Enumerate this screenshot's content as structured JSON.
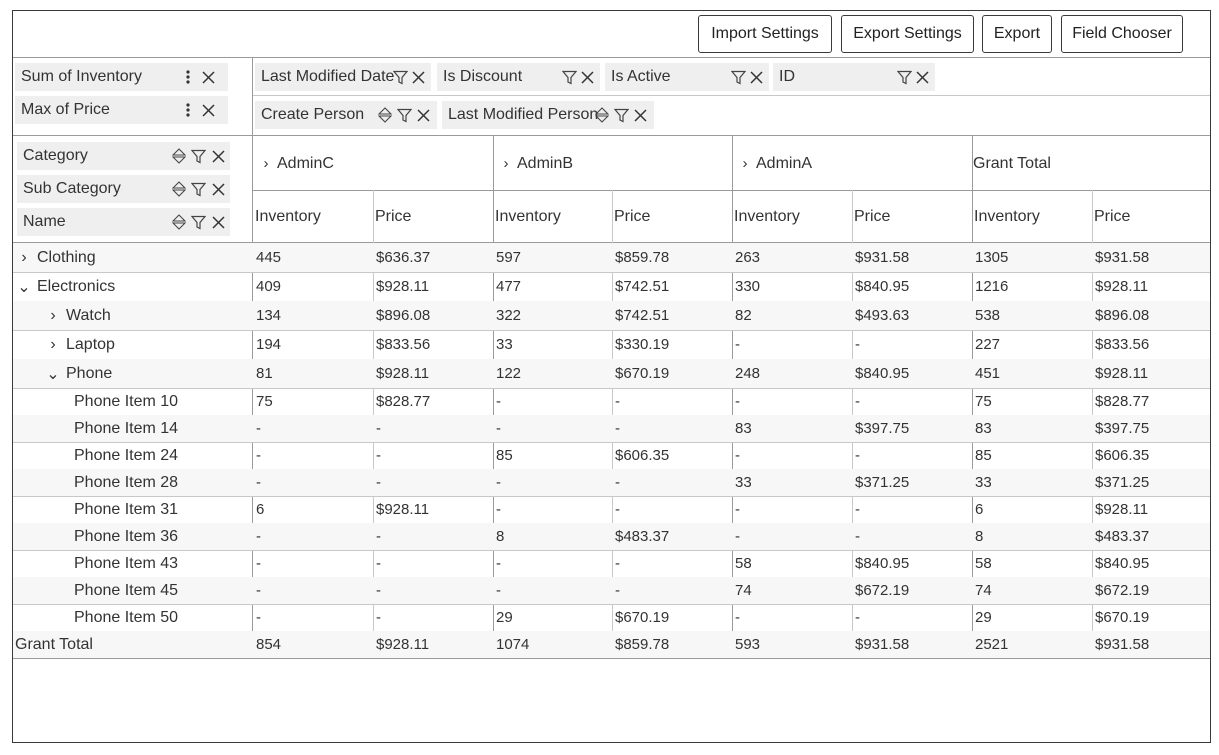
{
  "toolbar": {
    "import_settings": "Import Settings",
    "export_settings": "Export Settings",
    "export": "Export",
    "field_chooser": "Field Chooser"
  },
  "values_area": [
    {
      "label": "Sum of Inventory"
    },
    {
      "label": "Max of Price"
    }
  ],
  "filter_area": {
    "row1": [
      {
        "label": "Last Modified Date"
      },
      {
        "label": "Is Discount"
      },
      {
        "label": "Is Active"
      },
      {
        "label": "ID"
      }
    ],
    "row2": [
      {
        "label": "Create Person"
      },
      {
        "label": "Last Modified Person"
      }
    ]
  },
  "row_fields": [
    {
      "label": "Category"
    },
    {
      "label": "Sub Category"
    },
    {
      "label": "Name"
    }
  ],
  "column_groups": [
    {
      "label": "AdminC",
      "expand": "›"
    },
    {
      "label": "AdminB",
      "expand": "›"
    },
    {
      "label": "AdminA",
      "expand": "›"
    },
    {
      "label": "Grant Total",
      "expand": ""
    }
  ],
  "measure_headers": [
    "Inventory",
    "Price",
    "Inventory",
    "Price",
    "Inventory",
    "Price",
    "Inventory",
    "Price"
  ],
  "rows": [
    {
      "label": "Clothing",
      "level": 0,
      "expand": "›",
      "values": [
        "445",
        "$636.37",
        "597",
        "$859.78",
        "263",
        "$931.58",
        "1305",
        "$931.58"
      ]
    },
    {
      "label": "Electronics",
      "level": 0,
      "expand": "⌄",
      "values": [
        "409",
        "$928.11",
        "477",
        "$742.51",
        "330",
        "$840.95",
        "1216",
        "$928.11"
      ]
    },
    {
      "label": "Watch",
      "level": 1,
      "expand": "›",
      "values": [
        "134",
        "$896.08",
        "322",
        "$742.51",
        "82",
        "$493.63",
        "538",
        "$896.08"
      ]
    },
    {
      "label": "Laptop",
      "level": 1,
      "expand": "›",
      "values": [
        "194",
        "$833.56",
        "33",
        "$330.19",
        "-",
        "-",
        "227",
        "$833.56"
      ]
    },
    {
      "label": "Phone",
      "level": 1,
      "expand": "⌄",
      "values": [
        "81",
        "$928.11",
        "122",
        "$670.19",
        "248",
        "$840.95",
        "451",
        "$928.11"
      ]
    },
    {
      "label": "Phone Item 10",
      "level": 2,
      "expand": "",
      "values": [
        "75",
        "$828.77",
        "-",
        "-",
        "-",
        "-",
        "75",
        "$828.77"
      ]
    },
    {
      "label": "Phone Item 14",
      "level": 2,
      "expand": "",
      "values": [
        "-",
        "-",
        "-",
        "-",
        "83",
        "$397.75",
        "83",
        "$397.75"
      ]
    },
    {
      "label": "Phone Item 24",
      "level": 2,
      "expand": "",
      "values": [
        "-",
        "-",
        "85",
        "$606.35",
        "-",
        "-",
        "85",
        "$606.35"
      ]
    },
    {
      "label": "Phone Item 28",
      "level": 2,
      "expand": "",
      "values": [
        "-",
        "-",
        "-",
        "-",
        "33",
        "$371.25",
        "33",
        "$371.25"
      ]
    },
    {
      "label": "Phone Item 31",
      "level": 2,
      "expand": "",
      "values": [
        "6",
        "$928.11",
        "-",
        "-",
        "-",
        "-",
        "6",
        "$928.11"
      ]
    },
    {
      "label": "Phone Item 36",
      "level": 2,
      "expand": "",
      "values": [
        "-",
        "-",
        "8",
        "$483.37",
        "-",
        "-",
        "8",
        "$483.37"
      ]
    },
    {
      "label": "Phone Item 43",
      "level": 2,
      "expand": "",
      "values": [
        "-",
        "-",
        "-",
        "-",
        "58",
        "$840.95",
        "58",
        "$840.95"
      ]
    },
    {
      "label": "Phone Item 45",
      "level": 2,
      "expand": "",
      "values": [
        "-",
        "-",
        "-",
        "-",
        "74",
        "$672.19",
        "74",
        "$672.19"
      ]
    },
    {
      "label": "Phone Item 50",
      "level": 2,
      "expand": "",
      "values": [
        "-",
        "-",
        "29",
        "$670.19",
        "-",
        "-",
        "29",
        "$670.19"
      ]
    },
    {
      "label": "Grant Total",
      "level": -1,
      "expand": "",
      "values": [
        "854",
        "$928.11",
        "1074",
        "$859.78",
        "593",
        "$931.58",
        "2521",
        "$931.58"
      ]
    }
  ],
  "colors": {
    "row_alt": "#f7f7f7",
    "chip_bg": "#efefef",
    "grid_line": "#c8c8c8",
    "header_line": "#9a9a9a"
  }
}
